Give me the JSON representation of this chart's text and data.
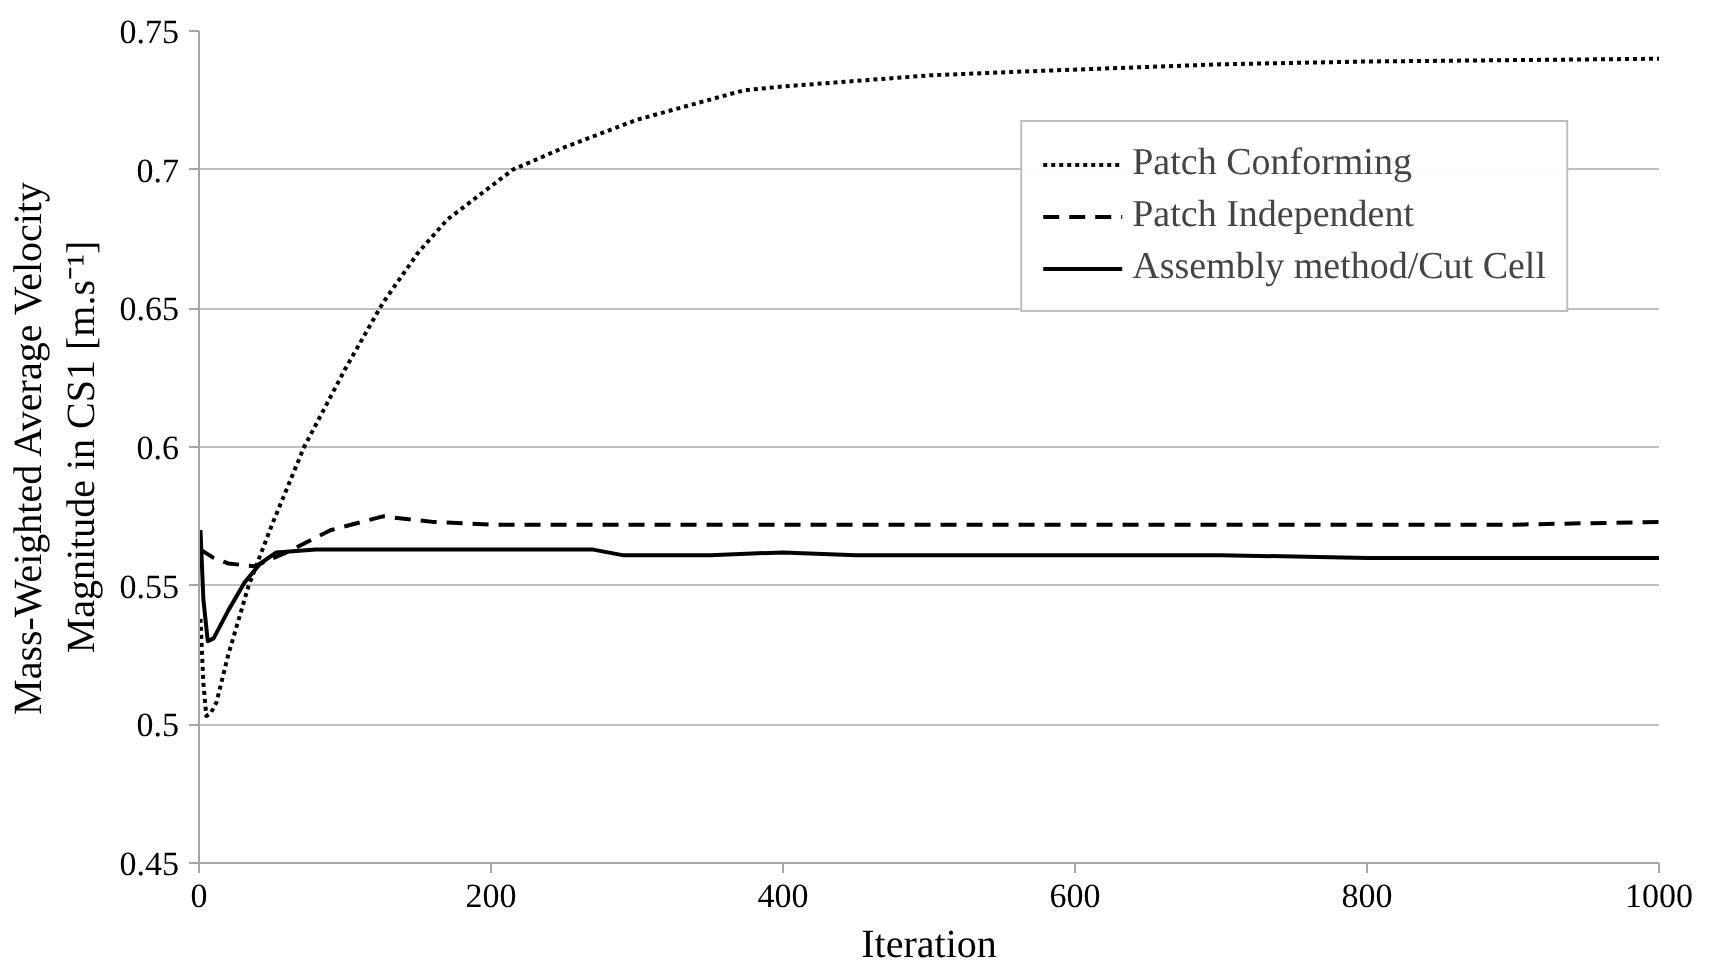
{
  "chart_data": {
    "type": "line",
    "xlabel": "Iteration",
    "ylabel": "Mass-Weighted Average Velocity Magnitude in CS1 [m.s⁻¹]",
    "xlim": [
      0,
      1000
    ],
    "ylim": [
      0.45,
      0.75
    ],
    "xticks": [
      0,
      200,
      400,
      600,
      800,
      1000
    ],
    "yticks": [
      0.45,
      0.5,
      0.55,
      0.6,
      0.65,
      0.7,
      0.75
    ],
    "grid": "y",
    "legend": "top right",
    "series": [
      {
        "name": "Patch Conforming",
        "color": "#000000",
        "line_style": "dotted",
        "x": [
          1,
          3,
          5,
          8,
          12,
          20,
          34,
          50,
          72,
          100,
          126,
          150,
          170,
          215,
          250,
          300,
          373,
          400,
          500,
          570,
          700,
          800,
          900,
          1000
        ],
        "values": [
          0.538,
          0.515,
          0.503,
          0.504,
          0.508,
          0.525,
          0.55,
          0.572,
          0.6,
          0.628,
          0.652,
          0.67,
          0.682,
          0.7,
          0.708,
          0.718,
          0.7286,
          0.73,
          0.734,
          0.7355,
          0.738,
          0.739,
          0.7395,
          0.74
        ]
      },
      {
        "name": "Patch Independent",
        "color": "#000000",
        "line_style": "dashed",
        "x": [
          1,
          10,
          20,
          38,
          60,
          90,
          126,
          160,
          200,
          300,
          400,
          500,
          600,
          700,
          800,
          900,
          1000
        ],
        "values": [
          0.563,
          0.56,
          0.558,
          0.557,
          0.562,
          0.57,
          0.575,
          0.573,
          0.572,
          0.572,
          0.572,
          0.572,
          0.572,
          0.572,
          0.572,
          0.572,
          0.573
        ]
      },
      {
        "name": "Assembly method/Cut Cell",
        "color": "#000000",
        "line_style": "solid",
        "x": [
          1,
          3,
          6,
          10,
          20,
          31,
          42,
          53,
          80,
          150,
          200,
          270,
          290,
          350,
          400,
          450,
          600,
          700,
          800,
          900,
          1000
        ],
        "values": [
          0.57,
          0.545,
          0.53,
          0.531,
          0.541,
          0.551,
          0.558,
          0.562,
          0.563,
          0.563,
          0.563,
          0.563,
          0.561,
          0.561,
          0.562,
          0.561,
          0.561,
          0.561,
          0.56,
          0.56,
          0.56
        ]
      }
    ]
  }
}
